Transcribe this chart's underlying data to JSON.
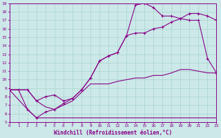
{
  "xlabel": "Windchill (Refroidissement éolien,°C)",
  "xlim": [
    0,
    23
  ],
  "ylim": [
    5,
    19
  ],
  "xticks": [
    0,
    1,
    2,
    3,
    4,
    5,
    6,
    7,
    8,
    9,
    10,
    11,
    12,
    13,
    14,
    15,
    16,
    17,
    18,
    19,
    20,
    21,
    22,
    23
  ],
  "yticks": [
    5,
    6,
    7,
    8,
    9,
    10,
    11,
    12,
    13,
    14,
    15,
    16,
    17,
    18,
    19
  ],
  "bg_color": "#cce8e8",
  "grid_color": "#a8d4cc",
  "line_color": "#880088",
  "line1_x": [
    0,
    1,
    2,
    3,
    4,
    5,
    6,
    7,
    8,
    9,
    10,
    11,
    12,
    13,
    14,
    15,
    16,
    17,
    18,
    19,
    20,
    21,
    22,
    23
  ],
  "line1_y": [
    8.8,
    8.8,
    6.5,
    5.5,
    5.5,
    5.5,
    5.5,
    5.5,
    5.5,
    5.5,
    5.5,
    5.5,
    5.5,
    5.5,
    5.5,
    5.5,
    5.5,
    5.5,
    5.5,
    5.5,
    5.5,
    5.5,
    5.5,
    5.5
  ],
  "line2_x": [
    0,
    1,
    2,
    3,
    4,
    5,
    6,
    7,
    8,
    9,
    10,
    11,
    12,
    13,
    14,
    15,
    16,
    17,
    18,
    19,
    20,
    21,
    22,
    23
  ],
  "line2_y": [
    8.8,
    8.8,
    8.8,
    7.5,
    6.8,
    6.5,
    7.0,
    7.5,
    8.5,
    9.5,
    9.5,
    9.5,
    9.8,
    10.0,
    10.2,
    10.2,
    10.5,
    10.5,
    10.8,
    11.2,
    11.2,
    11.0,
    10.8,
    10.8
  ],
  "line3_x": [
    0,
    1,
    2,
    3,
    4,
    5,
    6,
    7,
    8,
    9,
    10,
    11,
    12,
    13,
    14,
    15,
    16,
    17,
    18,
    19,
    20,
    21,
    22,
    23
  ],
  "line3_y": [
    8.8,
    8.8,
    8.8,
    7.5,
    8.0,
    8.2,
    7.5,
    7.8,
    8.8,
    10.2,
    12.2,
    12.8,
    13.2,
    15.2,
    15.5,
    15.5,
    16.0,
    16.2,
    16.8,
    17.2,
    17.8,
    17.8,
    17.5,
    17.0
  ],
  "line4_x": [
    0,
    2,
    3,
    4,
    5,
    6,
    7,
    8,
    9,
    10,
    11,
    12,
    13,
    14,
    15,
    16,
    17,
    18,
    19,
    20,
    21,
    22,
    23
  ],
  "line4_y": [
    8.8,
    6.5,
    5.5,
    6.2,
    6.5,
    7.2,
    7.8,
    8.8,
    10.2,
    12.2,
    12.8,
    13.2,
    15.2,
    18.8,
    19.0,
    18.5,
    17.5,
    17.5,
    17.2,
    17.0,
    17.0,
    12.5,
    10.8
  ]
}
